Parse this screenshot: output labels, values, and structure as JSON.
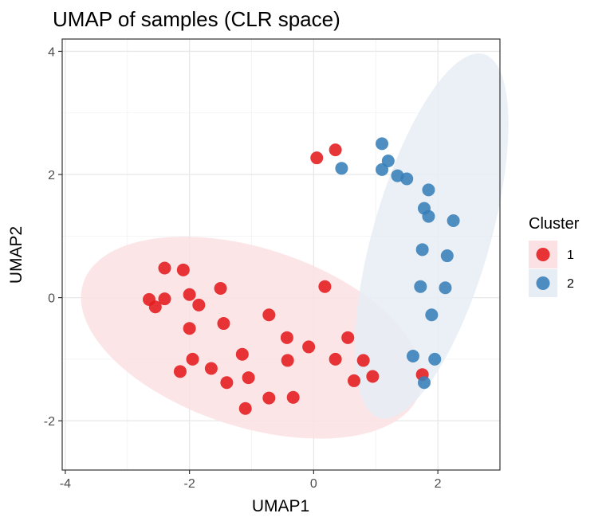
{
  "chart_data": {
    "type": "scatter",
    "title": "UMAP of samples (CLR space)",
    "xlabel": "UMAP1",
    "ylabel": "UMAP2",
    "xlim": [
      -4.05,
      3.0
    ],
    "ylim": [
      -2.8,
      4.2
    ],
    "x_ticks": [
      -4,
      -2,
      0,
      2
    ],
    "y_ticks": [
      -2,
      0,
      2,
      4
    ],
    "x_tick_labels": [
      "-4",
      "-2",
      "0",
      "2"
    ],
    "y_tick_labels": [
      "-2",
      "0",
      "2",
      "4"
    ],
    "grid": true,
    "legend": {
      "title": "Cluster",
      "position": "right",
      "entries": [
        "1",
        "2"
      ]
    },
    "series": [
      {
        "name": "1",
        "color": "#e41a1c",
        "ellipse_color": "#fbe1e3",
        "ellipse": {
          "cx": -1.0,
          "cy": -0.65,
          "rx": 2.85,
          "ry": 1.45,
          "angle_deg": -18
        },
        "points": [
          [
            -2.65,
            -0.03
          ],
          [
            -2.55,
            -0.15
          ],
          [
            -2.4,
            0.48
          ],
          [
            -2.4,
            -0.02
          ],
          [
            -2.1,
            0.45
          ],
          [
            -2.0,
            0.05
          ],
          [
            -2.0,
            -0.5
          ],
          [
            -1.85,
            -0.12
          ],
          [
            -1.95,
            -1.0
          ],
          [
            -2.15,
            -1.2
          ],
          [
            -1.65,
            -1.15
          ],
          [
            -1.5,
            0.15
          ],
          [
            -1.45,
            -0.42
          ],
          [
            -1.4,
            -1.38
          ],
          [
            -1.15,
            -0.92
          ],
          [
            -1.05,
            -1.3
          ],
          [
            -1.1,
            -1.8
          ],
          [
            -0.72,
            -0.28
          ],
          [
            -0.72,
            -1.63
          ],
          [
            -0.43,
            -0.65
          ],
          [
            -0.42,
            -1.02
          ],
          [
            -0.33,
            -1.62
          ],
          [
            -0.08,
            -0.8
          ],
          [
            0.05,
            2.27
          ],
          [
            0.18,
            0.18
          ],
          [
            0.35,
            2.4
          ],
          [
            0.35,
            -1.0
          ],
          [
            0.55,
            -0.65
          ],
          [
            0.65,
            -1.35
          ],
          [
            0.8,
            -1.02
          ],
          [
            0.95,
            -1.28
          ],
          [
            1.75,
            -1.25
          ]
        ]
      },
      {
        "name": "2",
        "color": "#377eb8",
        "ellipse_color": "#e6edf4",
        "ellipse": {
          "cx": 1.9,
          "cy": 1.0,
          "rx": 3.05,
          "ry": 0.95,
          "angle_deg": 74
        },
        "points": [
          [
            0.45,
            2.1
          ],
          [
            1.1,
            2.5
          ],
          [
            1.1,
            2.08
          ],
          [
            1.2,
            2.22
          ],
          [
            1.35,
            1.98
          ],
          [
            1.5,
            1.93
          ],
          [
            1.85,
            1.75
          ],
          [
            1.78,
            1.45
          ],
          [
            1.85,
            1.32
          ],
          [
            2.25,
            1.25
          ],
          [
            1.75,
            0.78
          ],
          [
            2.15,
            0.68
          ],
          [
            1.72,
            0.18
          ],
          [
            2.12,
            0.16
          ],
          [
            1.9,
            -0.28
          ],
          [
            1.6,
            -0.95
          ],
          [
            1.95,
            -1.0
          ],
          [
            1.78,
            -1.38
          ]
        ]
      }
    ]
  }
}
